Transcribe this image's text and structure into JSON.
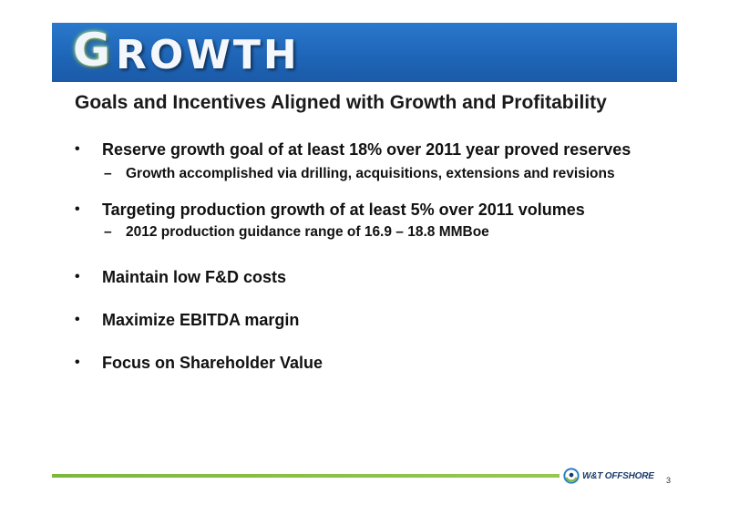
{
  "banner": {
    "first_letter": "G",
    "rest": "ROWTH"
  },
  "subtitle": "Goals and Incentives Aligned with Growth and Profitability",
  "bullets": [
    {
      "text": "Reserve growth goal of at least 18% over 2011 year proved reserves",
      "sub": "Growth accomplished via drilling, acquisitions, extensions and revisions"
    },
    {
      "text": "Targeting production growth of at least 5% over 2011 volumes",
      "sub": "2012 production guidance range of 16.9 – 18.8 MMBoe"
    },
    {
      "text": "Maintain low F&D costs"
    },
    {
      "text": "Maximize EBITDA margin"
    },
    {
      "text": "Focus on Shareholder Value"
    }
  ],
  "bullet_glyph": "•",
  "dash_glyph": "–",
  "footer": {
    "logo_text": "W&T OFFSHORE",
    "page_number": "3"
  },
  "colors": {
    "banner_blue": "#1f66b8",
    "accent_green": "#8cc34a",
    "logo_navy": "#1b3a6b"
  },
  "icons": {
    "logo_mark": "wt-swirl-logo"
  }
}
